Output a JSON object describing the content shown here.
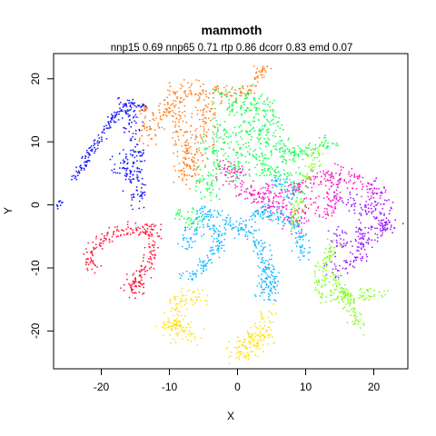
{
  "chart_data": {
    "type": "scatter",
    "title": "mammoth",
    "subtitle": "nnp15 0.69 nnp65 0.71 rtp 0.86 dcorr 0.83 emd 0.07",
    "xlabel": "X",
    "ylabel": "Y",
    "xlim": [
      -27,
      25
    ],
    "ylim": [
      -26,
      24
    ],
    "x_ticks": [
      -20,
      -10,
      0,
      10,
      20
    ],
    "y_ticks": [
      -20,
      -10,
      0,
      10,
      20
    ],
    "grid": false,
    "legend": "none",
    "strokes": [
      {
        "color": "#1a1aff",
        "w": 0.6,
        "pts": [
          [
            -24,
            4
          ],
          [
            -22,
            7.5
          ],
          [
            -20,
            11
          ],
          [
            -18,
            14
          ],
          [
            -16,
            16
          ],
          [
            -14.5,
            16
          ],
          [
            -13.5,
            15.5
          ]
        ]
      },
      {
        "color": "#1a1aff",
        "w": 1.2,
        "pts": [
          [
            -17,
            16
          ],
          [
            -15.5,
            14.5
          ],
          [
            -15,
            12.5
          ],
          [
            -16,
            11
          ]
        ]
      },
      {
        "color": "#1a1aff",
        "w": 1.5,
        "pts": [
          [
            -17,
            7.5
          ],
          [
            -16,
            8
          ],
          [
            -15.5,
            6
          ],
          [
            -15,
            4
          ],
          [
            -14.5,
            2
          ],
          [
            -15,
            1
          ],
          [
            -14,
            0.5
          ]
        ]
      },
      {
        "color": "#1a1aff",
        "w": 1.2,
        "pts": [
          [
            -15.5,
            9.5
          ],
          [
            -14.5,
            8.5
          ],
          [
            -14,
            7.5
          ]
        ]
      },
      {
        "color": "#1a1aff",
        "w": 1,
        "pts": [
          [
            -18,
            6
          ],
          [
            -17,
            5.5
          ],
          [
            -16,
            4.5
          ]
        ]
      },
      {
        "color": "#1a1aff",
        "w": 0.4,
        "pts": [
          [
            -26.5,
            -0.5
          ],
          [
            -26,
            0.5
          ]
        ]
      },
      {
        "color": "#ff1a40",
        "w": 1,
        "pts": [
          [
            -12.5,
            -3
          ],
          [
            -13.5,
            -4
          ],
          [
            -16,
            -4
          ],
          [
            -18.5,
            -4.5
          ],
          [
            -20.5,
            -6
          ],
          [
            -21.5,
            -7.5
          ],
          [
            -21.5,
            -9
          ],
          [
            -21,
            -10.5
          ]
        ]
      },
      {
        "color": "#ff1a40",
        "w": 1.2,
        "pts": [
          [
            -12.5,
            -3
          ],
          [
            -12.7,
            -6
          ],
          [
            -13,
            -8.5
          ],
          [
            -13.5,
            -10.5
          ],
          [
            -14.5,
            -12
          ],
          [
            -15.5,
            -13.5
          ],
          [
            -16,
            -13
          ]
        ]
      },
      {
        "color": "#ff1a40",
        "w": 1,
        "pts": [
          [
            -15.5,
            -11.5
          ],
          [
            -14.5,
            -12.5
          ],
          [
            -15,
            -14
          ]
        ]
      },
      {
        "color": "#ff8020",
        "w": 1.5,
        "pts": [
          [
            -11,
            12.5
          ],
          [
            -10,
            17
          ],
          [
            -9,
            18
          ],
          [
            -7,
            18.5
          ],
          [
            -5,
            17.5
          ],
          [
            -4.5,
            15
          ],
          [
            -5,
            12
          ],
          [
            -6,
            9
          ],
          [
            -6.5,
            6.5
          ],
          [
            -7,
            4
          ]
        ]
      },
      {
        "color": "#ff8020",
        "w": 1.5,
        "pts": [
          [
            -9,
            17
          ],
          [
            -8.5,
            14
          ],
          [
            -8,
            10
          ],
          [
            -7.5,
            7
          ],
          [
            -7,
            4
          ]
        ]
      },
      {
        "color": "#ff8020",
        "w": 1.2,
        "pts": [
          [
            -13.5,
            15
          ],
          [
            -13,
            12.5
          ],
          [
            -13,
            10
          ]
        ]
      },
      {
        "color": "#ff8020",
        "w": 1.2,
        "pts": [
          [
            -4,
            18.5
          ],
          [
            -2,
            18
          ],
          [
            0,
            17
          ]
        ]
      },
      {
        "color": "#ff8020",
        "w": 1,
        "pts": [
          [
            0,
            17
          ],
          [
            2,
            19
          ],
          [
            4,
            22
          ]
        ]
      },
      {
        "color": "#1aff50",
        "w": 1.5,
        "pts": [
          [
            -3,
            18
          ],
          [
            -1,
            16
          ],
          [
            1,
            15
          ],
          [
            2,
            13
          ],
          [
            3.5,
            11
          ],
          [
            4,
            8
          ],
          [
            3,
            5
          ]
        ]
      },
      {
        "color": "#1aff50",
        "w": 1.5,
        "pts": [
          [
            1,
            18
          ],
          [
            2,
            16
          ],
          [
            4,
            16
          ],
          [
            5,
            13
          ],
          [
            6,
            10
          ],
          [
            7,
            8
          ],
          [
            9,
            6
          ]
        ]
      },
      {
        "color": "#1aff50",
        "w": 1.5,
        "pts": [
          [
            -3,
            13
          ],
          [
            -2,
            10
          ],
          [
            -3,
            7
          ],
          [
            -4,
            5
          ],
          [
            -5,
            3
          ],
          [
            -4,
            1
          ]
        ]
      },
      {
        "color": "#1aff50",
        "w": 1.5,
        "pts": [
          [
            0,
            12
          ],
          [
            1,
            9
          ],
          [
            0,
            6
          ],
          [
            -1,
            4
          ]
        ]
      },
      {
        "color": "#1aff50",
        "w": 1.2,
        "pts": [
          [
            7,
            8
          ],
          [
            9,
            8.5
          ],
          [
            11,
            9
          ],
          [
            13,
            10
          ],
          [
            14,
            10.5
          ]
        ]
      },
      {
        "color": "#1aff50",
        "w": 1.2,
        "pts": [
          [
            -6,
            -1
          ],
          [
            -7,
            -3
          ],
          [
            -7,
            -4
          ]
        ]
      },
      {
        "color": "#1aff50",
        "w": 1.2,
        "pts": [
          [
            4,
            6
          ],
          [
            6,
            5
          ],
          [
            8,
            3.5
          ],
          [
            9.5,
            1.5
          ]
        ]
      },
      {
        "color": "#1aff50",
        "w": 1,
        "pts": [
          [
            -5,
            10
          ],
          [
            -4,
            9
          ]
        ]
      },
      {
        "color": "#1aff50",
        "w": 0.8,
        "pts": [
          [
            -9,
            -1
          ],
          [
            -8,
            -2
          ]
        ]
      },
      {
        "color": "#ff1ac0",
        "w": 1.5,
        "pts": [
          [
            -1,
            4
          ],
          [
            1,
            3
          ],
          [
            3,
            1
          ],
          [
            5,
            0
          ],
          [
            7,
            1
          ],
          [
            9,
            3
          ],
          [
            11,
            4
          ],
          [
            13,
            5
          ],
          [
            15,
            5
          ],
          [
            17,
            4
          ],
          [
            19,
            3
          ],
          [
            21,
            2
          ]
        ]
      },
      {
        "color": "#ff1ac0",
        "w": 1.5,
        "pts": [
          [
            5,
            0
          ],
          [
            6,
            -1
          ],
          [
            7,
            -2
          ],
          [
            9,
            -3
          ],
          [
            10,
            -1
          ],
          [
            11,
            1
          ]
        ]
      },
      {
        "color": "#ff1ac0",
        "w": 1.2,
        "pts": [
          [
            13,
            5
          ],
          [
            14,
            3
          ],
          [
            14,
            1
          ],
          [
            13.5,
            -1
          ],
          [
            12,
            -2
          ]
        ]
      },
      {
        "color": "#ff1ac0",
        "w": 1.2,
        "pts": [
          [
            -3,
            5
          ],
          [
            -1,
            6
          ],
          [
            1,
            5
          ]
        ]
      },
      {
        "color": "#ff1ac0",
        "w": 1,
        "pts": [
          [
            2,
            1
          ],
          [
            4,
            2
          ],
          [
            5,
            3
          ]
        ]
      },
      {
        "color": "#10b8ff",
        "w": 1.2,
        "pts": [
          [
            -5,
            -1
          ],
          [
            -6,
            -3
          ],
          [
            -7,
            -5
          ],
          [
            -7,
            -7
          ]
        ]
      },
      {
        "color": "#10b8ff",
        "w": 1.2,
        "pts": [
          [
            -5,
            -1
          ],
          [
            -2,
            -2
          ],
          [
            1,
            -4
          ],
          [
            3,
            -6
          ],
          [
            4,
            -9
          ],
          [
            5,
            -11
          ],
          [
            4,
            -13
          ],
          [
            3,
            -14
          ]
        ]
      },
      {
        "color": "#10b8ff",
        "w": 1.2,
        "pts": [
          [
            4,
            -9
          ],
          [
            5,
            -12
          ],
          [
            5,
            -15
          ]
        ]
      },
      {
        "color": "#10b8ff",
        "w": 1,
        "pts": [
          [
            -2,
            -4
          ],
          [
            -3,
            -7
          ],
          [
            -5,
            -9
          ],
          [
            -6,
            -11
          ],
          [
            -8,
            -12
          ]
        ]
      },
      {
        "color": "#10b8ff",
        "w": 1,
        "pts": [
          [
            3,
            -2
          ],
          [
            5,
            -1
          ],
          [
            7,
            -2
          ],
          [
            9,
            -4
          ],
          [
            9.5,
            -7
          ],
          [
            9.8,
            -8.5
          ]
        ]
      },
      {
        "color": "#10b8ff",
        "w": 1.2,
        "pts": [
          [
            2,
            -3
          ],
          [
            3,
            -1
          ],
          [
            4,
            0
          ]
        ]
      },
      {
        "color": "#10b8ff",
        "w": 0.8,
        "pts": [
          [
            -4,
            -3
          ],
          [
            -3,
            -5
          ]
        ]
      },
      {
        "color": "#10b8ff",
        "w": 1.2,
        "pts": [
          [
            5,
            3
          ],
          [
            6,
            4
          ],
          [
            7,
            3
          ],
          [
            8,
            1
          ]
        ]
      },
      {
        "color": "#9b1aff",
        "w": 1.5,
        "pts": [
          [
            15,
            2
          ],
          [
            17,
            0
          ],
          [
            19,
            -1
          ],
          [
            21,
            -2
          ],
          [
            22.5,
            -3
          ],
          [
            21,
            -4
          ],
          [
            19,
            -5
          ],
          [
            18,
            -7
          ],
          [
            17,
            -9
          ],
          [
            15,
            -10
          ],
          [
            14,
            -11
          ]
        ]
      },
      {
        "color": "#9b1aff",
        "w": 1.5,
        "pts": [
          [
            20,
            3
          ],
          [
            21,
            1
          ],
          [
            21.5,
            -1
          ]
        ]
      },
      {
        "color": "#9b1aff",
        "w": 1.2,
        "pts": [
          [
            14.5,
            -4
          ],
          [
            15,
            -6
          ],
          [
            16,
            -7
          ]
        ]
      },
      {
        "color": "#9b1aff",
        "w": 1,
        "pts": [
          [
            21,
            -3
          ],
          [
            22.5,
            -4
          ]
        ]
      },
      {
        "color": "#9b1aff",
        "w": 1,
        "pts": [
          [
            18,
            -3
          ],
          [
            18,
            -6
          ]
        ]
      },
      {
        "color": "#ffe01a",
        "w": 1.5,
        "pts": [
          [
            -9,
            -15.5
          ],
          [
            -8,
            -14.5
          ],
          [
            -6,
            -14.5
          ],
          [
            -5.5,
            -16
          ]
        ]
      },
      {
        "color": "#ffe01a",
        "w": 1.5,
        "pts": [
          [
            -9,
            -15.5
          ],
          [
            -9,
            -17
          ],
          [
            -9,
            -19
          ],
          [
            -9.5,
            -20
          ],
          [
            -8.5,
            -21
          ]
        ]
      },
      {
        "color": "#ffe01a",
        "w": 1.2,
        "pts": [
          [
            -9,
            -18
          ],
          [
            -10,
            -19
          ],
          [
            -11,
            -20
          ]
        ]
      },
      {
        "color": "#ffe01a",
        "w": 1.2,
        "pts": [
          [
            -9,
            -19
          ],
          [
            -7,
            -20
          ],
          [
            -6,
            -21
          ]
        ]
      },
      {
        "color": "#ffe01a",
        "w": 1.5,
        "pts": [
          [
            5,
            -17
          ],
          [
            4,
            -18.5
          ],
          [
            3,
            -20
          ],
          [
            2,
            -21
          ],
          [
            1,
            -22
          ],
          [
            0,
            -23
          ],
          [
            -0.5,
            -24
          ]
        ]
      },
      {
        "color": "#ffe01a",
        "w": 1.2,
        "pts": [
          [
            2,
            -21
          ],
          [
            2.5,
            -23
          ],
          [
            2,
            -24
          ]
        ]
      },
      {
        "color": "#ffe01a",
        "w": 1,
        "pts": [
          [
            3,
            -20
          ],
          [
            4,
            -21
          ],
          [
            5,
            -21
          ]
        ]
      },
      {
        "color": "#ffe01a",
        "w": 1,
        "pts": [
          [
            1,
            -22
          ],
          [
            0.5,
            -24
          ]
        ]
      },
      {
        "color": "#80ff1a",
        "w": 1,
        "pts": [
          [
            14,
            -6
          ],
          [
            13,
            -9
          ],
          [
            12,
            -11
          ],
          [
            12,
            -13
          ],
          [
            13,
            -14.5
          ],
          [
            15,
            -14.5
          ],
          [
            17,
            -14.3
          ],
          [
            19,
            -14
          ],
          [
            21,
            -13.8
          ]
        ]
      },
      {
        "color": "#80ff1a",
        "w": 1,
        "pts": [
          [
            14,
            -11
          ],
          [
            15,
            -13
          ],
          [
            16,
            -15
          ],
          [
            17,
            -17
          ],
          [
            18,
            -19.5
          ]
        ]
      },
      {
        "color": "#80ff1a",
        "w": 1,
        "pts": [
          [
            8,
            -3
          ],
          [
            9,
            -1
          ],
          [
            9,
            1
          ]
        ]
      },
      {
        "color": "#80ff1a",
        "w": 1,
        "pts": [
          [
            10,
            4
          ],
          [
            11,
            6
          ],
          [
            12,
            9
          ]
        ]
      }
    ]
  }
}
